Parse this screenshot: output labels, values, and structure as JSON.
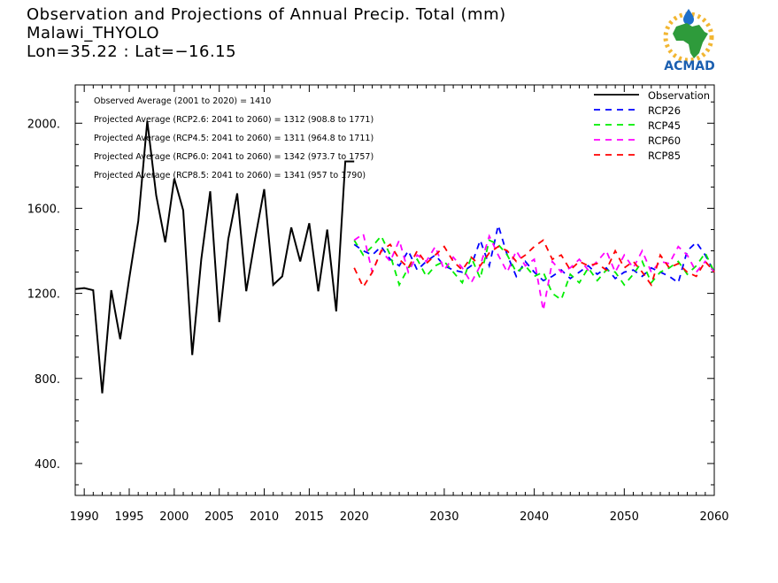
{
  "header": {
    "title": "Observation and Projections of Annual Precip. Total (mm)",
    "location": "Malawi_THYOLO",
    "coords": "Lon=35.22 : Lat=−16.15"
  },
  "logo": {
    "text": "ACMAD",
    "icon": "africa-logo-icon"
  },
  "stats": [
    "Observed Average (2001 to 2020) = 1410",
    "Projected Average (RCP2.6: 2041 to 2060) = 1312 (908.8 to 1771)",
    "Projected Average (RCP4.5: 2041 to 2060) = 1311 (964.8 to 1711)",
    "Projected Average (RCP6.0: 2041 to 2060) = 1342 (973.7 to 1757)",
    "Projected Average (RCP8.5: 2041 to 2060) = 1341 (957 to 1790)"
  ],
  "chart_data": {
    "type": "line",
    "title": "Observation and Projections of Annual Precip. Total (mm)",
    "xlim": [
      1989,
      2060
    ],
    "ylim": [
      250,
      2180
    ],
    "xticks": [
      {
        "v": 1990,
        "label": "1990"
      },
      {
        "v": 1995,
        "label": "1995"
      },
      {
        "v": 2000,
        "label": "2000"
      },
      {
        "v": 2005,
        "label": "2005"
      },
      {
        "v": 2010,
        "label": "2010"
      },
      {
        "v": 2015,
        "label": "2015"
      },
      {
        "v": 2020,
        "label": "2020"
      },
      {
        "v": 2030,
        "label": "2030"
      },
      {
        "v": 2040,
        "label": "2040"
      },
      {
        "v": 2050,
        "label": "2050"
      },
      {
        "v": 2060,
        "label": "2060"
      }
    ],
    "yticks": [
      {
        "v": 400,
        "label": "400."
      },
      {
        "v": 800,
        "label": "800."
      },
      {
        "v": 1200,
        "label": "1200."
      },
      {
        "v": 1600,
        "label": "1600."
      },
      {
        "v": 2000,
        "label": "2000."
      }
    ],
    "legend_position": "top-right",
    "series": [
      {
        "name": "Observation",
        "color": "#000000",
        "dashed": false,
        "x": [
          1989,
          1990,
          1991,
          1992,
          1993,
          1994,
          1995,
          1996,
          1997,
          1998,
          1999,
          2000,
          2001,
          2002,
          2003,
          2004,
          2005,
          2006,
          2007,
          2008,
          2009,
          2010,
          2011,
          2012,
          2013,
          2014,
          2015,
          2016,
          2017,
          2018,
          2019,
          2020
        ],
        "y": [
          1220,
          1225,
          1215,
          730,
          1215,
          985,
          1270,
          1540,
          2010,
          1660,
          1440,
          1740,
          1590,
          910,
          1360,
          1680,
          1065,
          1455,
          1670,
          1210,
          1460,
          1690,
          1240,
          1280,
          1510,
          1350,
          1530,
          1210,
          1500,
          1115,
          1820,
          1820
        ]
      },
      {
        "name": "RCP26",
        "color": "#0000ff",
        "dashed": true,
        "x": [
          2020,
          2021,
          2022,
          2023,
          2024,
          2025,
          2026,
          2027,
          2028,
          2029,
          2030,
          2031,
          2032,
          2033,
          2034,
          2035,
          2036,
          2037,
          2038,
          2039,
          2040,
          2041,
          2042,
          2043,
          2044,
          2045,
          2046,
          2047,
          2048,
          2049,
          2050,
          2051,
          2052,
          2053,
          2054,
          2055,
          2056,
          2057,
          2058,
          2059,
          2060
        ],
        "y": [
          1430,
          1400,
          1380,
          1420,
          1360,
          1330,
          1400,
          1310,
          1350,
          1380,
          1330,
          1310,
          1300,
          1330,
          1450,
          1330,
          1520,
          1380,
          1280,
          1350,
          1300,
          1260,
          1280,
          1310,
          1270,
          1300,
          1330,
          1290,
          1320,
          1270,
          1300,
          1310,
          1280,
          1320,
          1300,
          1280,
          1250,
          1400,
          1440,
          1380,
          1300
        ]
      },
      {
        "name": "RCP45",
        "color": "#00ee00",
        "dashed": true,
        "x": [
          2020,
          2021,
          2022,
          2023,
          2024,
          2025,
          2026,
          2027,
          2028,
          2029,
          2030,
          2031,
          2032,
          2033,
          2034,
          2035,
          2036,
          2037,
          2038,
          2039,
          2040,
          2041,
          2042,
          2043,
          2044,
          2045,
          2046,
          2047,
          2048,
          2049,
          2050,
          2051,
          2052,
          2053,
          2054,
          2055,
          2056,
          2057,
          2058,
          2059,
          2060
        ],
        "y": [
          1450,
          1380,
          1420,
          1470,
          1380,
          1240,
          1320,
          1360,
          1280,
          1330,
          1350,
          1300,
          1250,
          1370,
          1270,
          1450,
          1430,
          1380,
          1300,
          1330,
          1280,
          1300,
          1200,
          1170,
          1290,
          1250,
          1320,
          1260,
          1310,
          1300,
          1240,
          1290,
          1350,
          1250,
          1300,
          1320,
          1350,
          1290,
          1330,
          1390,
          1300
        ]
      },
      {
        "name": "RCP60",
        "color": "#ff00ff",
        "dashed": true,
        "x": [
          2020,
          2021,
          2022,
          2023,
          2024,
          2025,
          2026,
          2027,
          2028,
          2029,
          2030,
          2031,
          2032,
          2033,
          2034,
          2035,
          2036,
          2037,
          2038,
          2039,
          2040,
          2041,
          2042,
          2043,
          2044,
          2045,
          2046,
          2047,
          2048,
          2049,
          2050,
          2051,
          2052,
          2053,
          2054,
          2055,
          2056,
          2057,
          2058,
          2059,
          2060
        ],
        "y": [
          1450,
          1480,
          1300,
          1400,
          1350,
          1450,
          1300,
          1380,
          1350,
          1420,
          1310,
          1370,
          1320,
          1250,
          1330,
          1470,
          1380,
          1300,
          1400,
          1330,
          1360,
          1120,
          1350,
          1300,
          1320,
          1360,
          1310,
          1350,
          1400,
          1300,
          1380,
          1320,
          1400,
          1300,
          1350,
          1340,
          1420,
          1380,
          1300,
          1350,
          1300
        ]
      },
      {
        "name": "RCP85",
        "color": "#ff0000",
        "dashed": true,
        "x": [
          2020,
          2021,
          2022,
          2023,
          2024,
          2025,
          2026,
          2027,
          2028,
          2029,
          2030,
          2031,
          2032,
          2033,
          2034,
          2035,
          2036,
          2037,
          2038,
          2039,
          2040,
          2041,
          2042,
          2043,
          2044,
          2045,
          2046,
          2047,
          2048,
          2049,
          2050,
          2051,
          2052,
          2053,
          2054,
          2055,
          2056,
          2057,
          2058,
          2059,
          2060
        ],
        "y": [
          1320,
          1230,
          1300,
          1400,
          1430,
          1360,
          1320,
          1400,
          1340,
          1380,
          1420,
          1350,
          1310,
          1370,
          1330,
          1390,
          1420,
          1400,
          1350,
          1380,
          1420,
          1450,
          1360,
          1380,
          1310,
          1350,
          1330,
          1340,
          1310,
          1400,
          1320,
          1350,
          1300,
          1240,
          1380,
          1320,
          1340,
          1300,
          1280,
          1350,
          1300
        ]
      }
    ]
  }
}
